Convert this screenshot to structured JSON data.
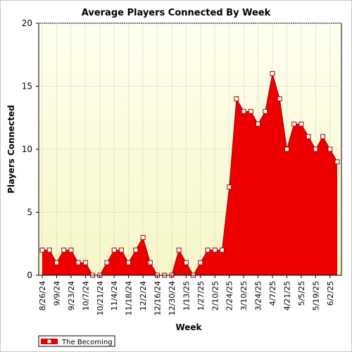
{
  "chart_data": {
    "type": "area",
    "title": "Average Players Connected By Week",
    "xlabel": "Week",
    "ylabel": "Players Connected",
    "ylim": [
      0,
      20
    ],
    "yticks": [
      0,
      5,
      10,
      15,
      20
    ],
    "grid": true,
    "legend_position": "bottom-left",
    "colors": {
      "plot_bg_top": "#fffff0",
      "plot_bg_bottom": "#f6f6c8",
      "area_fill": "#ee0000",
      "area_stroke": "#990000",
      "marker_fill": "#ffffff",
      "marker_stroke": "#990000",
      "grid": "#bbbbbb",
      "axis": "#000000"
    },
    "x": [
      "8/26/24",
      "9/2/24",
      "9/9/24",
      "9/16/24",
      "9/23/24",
      "9/30/24",
      "10/7/24",
      "10/14/24",
      "10/21/24",
      "10/28/24",
      "11/4/24",
      "11/11/24",
      "11/18/24",
      "11/25/24",
      "12/2/24",
      "12/9/24",
      "12/16/24",
      "12/23/24",
      "12/30/24",
      "1/6/25",
      "1/13/25",
      "1/20/25",
      "1/27/25",
      "2/3/25",
      "2/10/25",
      "2/17/25",
      "2/24/25",
      "3/3/25",
      "3/10/25",
      "3/17/25",
      "3/24/25",
      "3/31/25",
      "4/7/25",
      "4/14/25",
      "4/21/25",
      "4/28/25",
      "5/5/25",
      "5/12/25",
      "5/19/25",
      "5/26/25",
      "6/2/25",
      "6/9/25"
    ],
    "xtick_labels": [
      "8/26/24",
      "9/9/24",
      "9/23/24",
      "10/7/24",
      "10/21/24",
      "11/4/24",
      "11/18/24",
      "12/2/24",
      "12/16/24",
      "12/30/24",
      "1/13/25",
      "1/27/25",
      "2/10/25",
      "2/24/25",
      "3/10/25",
      "3/24/25",
      "4/7/25",
      "4/21/25",
      "5/5/25",
      "5/19/25",
      "6/2/25"
    ],
    "series": [
      {
        "name": "The Becoming",
        "values": [
          2,
          2,
          1,
          2,
          2,
          1,
          1,
          0,
          0,
          1,
          2,
          2,
          1,
          2,
          3,
          1,
          0,
          0,
          0,
          2,
          1,
          0,
          1,
          2,
          2,
          2,
          7,
          14,
          13,
          13,
          12,
          13,
          16,
          14,
          10,
          12,
          12,
          11,
          10,
          11,
          10,
          9
        ]
      }
    ]
  }
}
